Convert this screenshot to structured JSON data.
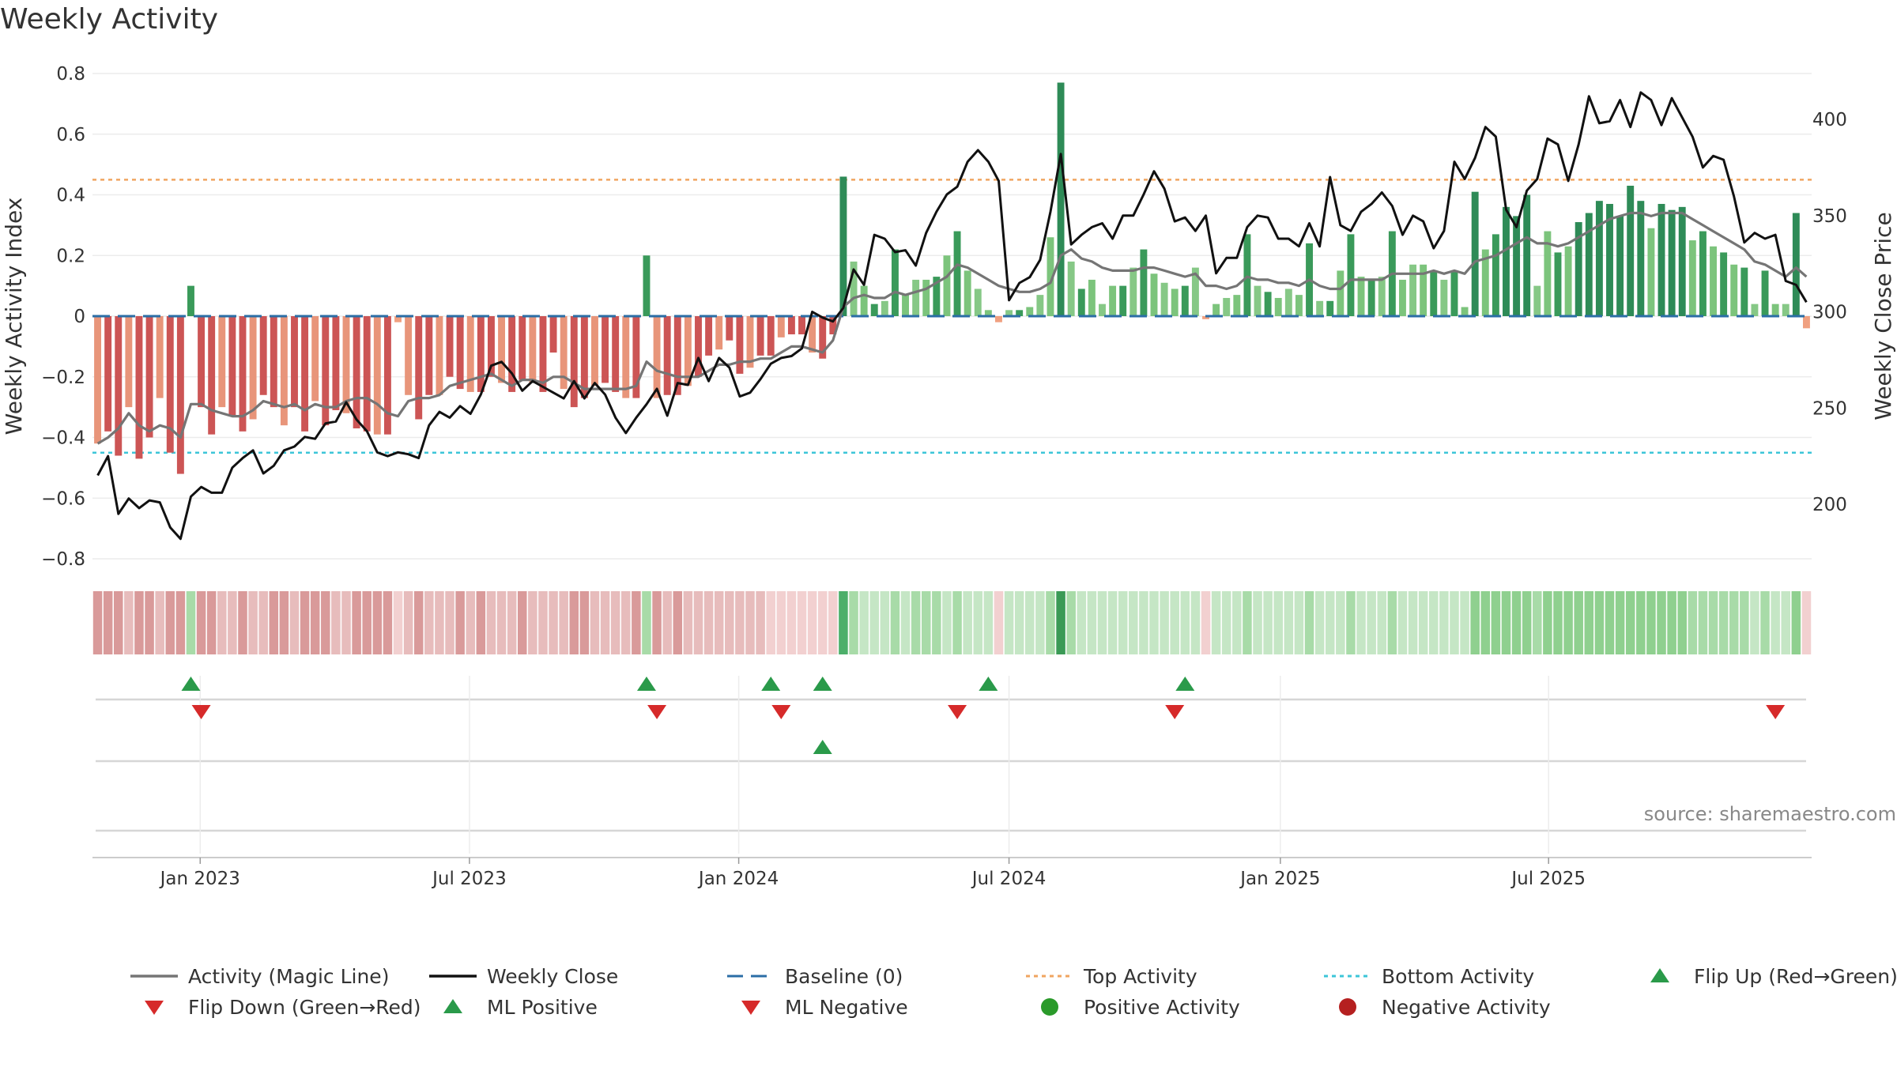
{
  "chart_data": {
    "type": "bar",
    "title": "Weekly Activity",
    "source": "source: sharemaestro.com",
    "left_axis": {
      "label": "Weekly Activity Index",
      "ylim": [
        -0.8,
        0.8
      ],
      "ticks": [
        "−0.8",
        "−0.6",
        "−0.4",
        "−0.2",
        "0",
        "0.2",
        "0.4",
        "0.6",
        "0.8"
      ]
    },
    "right_axis": {
      "label": "Weekly Close Price",
      "ticks": [
        "200",
        "250",
        "300",
        "350",
        "400"
      ]
    },
    "x_axis": {
      "ticks": [
        "Jan 2023",
        "Jul 2023",
        "Jan 2024",
        "Jul 2024",
        "Jan 2025",
        "Jul 2025"
      ]
    },
    "reference_lines": {
      "baseline": 0,
      "top_activity": 0.45,
      "bottom_activity": -0.45
    },
    "activity_index": [
      -0.42,
      -0.38,
      -0.46,
      -0.3,
      -0.47,
      -0.4,
      -0.27,
      -0.45,
      -0.52,
      0.1,
      -0.3,
      -0.39,
      -0.3,
      -0.33,
      -0.38,
      -0.34,
      -0.26,
      -0.3,
      -0.36,
      -0.3,
      -0.38,
      -0.28,
      -0.36,
      -0.31,
      -0.32,
      -0.37,
      -0.38,
      -0.39,
      -0.39,
      -0.02,
      -0.26,
      -0.34,
      -0.26,
      -0.26,
      -0.2,
      -0.24,
      -0.25,
      -0.25,
      -0.2,
      -0.22,
      -0.25,
      -0.21,
      -0.22,
      -0.25,
      -0.12,
      -0.24,
      -0.3,
      -0.27,
      -0.23,
      -0.22,
      -0.25,
      -0.27,
      -0.27,
      0.2,
      -0.27,
      -0.26,
      -0.26,
      -0.23,
      -0.2,
      -0.13,
      -0.11,
      -0.08,
      -0.19,
      -0.17,
      -0.13,
      -0.13,
      -0.07,
      -0.06,
      -0.06,
      -0.12,
      -0.14,
      -0.06,
      0.46,
      0.18,
      0.1,
      0.04,
      0.05,
      0.22,
      0.07,
      0.12,
      0.12,
      0.13,
      0.2,
      0.28,
      0.15,
      0.09,
      0.02,
      -0.02,
      0.02,
      0.02,
      0.03,
      0.07,
      0.26,
      0.77,
      0.18,
      0.09,
      0.12,
      0.04,
      0.1,
      0.1,
      0.16,
      0.22,
      0.14,
      0.11,
      0.09,
      0.1,
      0.16,
      -0.01,
      0.04,
      0.06,
      0.07,
      0.27,
      0.1,
      0.08,
      0.06,
      0.09,
      0.07,
      0.24,
      0.05,
      0.05,
      0.15,
      0.27,
      0.13,
      0.12,
      0.13,
      0.28,
      0.12,
      0.17,
      0.17,
      0.15,
      0.12,
      0.15,
      0.03,
      0.41,
      0.22,
      0.27,
      0.36,
      0.33,
      0.4,
      0.1,
      0.28,
      0.21,
      0.23,
      0.31,
      0.34,
      0.38,
      0.37,
      0.33,
      0.43,
      0.38,
      0.29,
      0.37,
      0.35,
      0.36,
      0.25,
      0.28,
      0.23,
      0.21,
      0.17,
      0.16,
      0.04,
      0.15,
      0.04,
      0.04,
      0.34,
      -0.04
    ],
    "magic_line": [
      -0.42,
      -0.4,
      -0.37,
      -0.32,
      -0.36,
      -0.38,
      -0.36,
      -0.37,
      -0.4,
      -0.29,
      -0.29,
      -0.31,
      -0.32,
      -0.33,
      -0.33,
      -0.31,
      -0.28,
      -0.29,
      -0.3,
      -0.29,
      -0.31,
      -0.29,
      -0.3,
      -0.3,
      -0.28,
      -0.27,
      -0.27,
      -0.29,
      -0.32,
      -0.33,
      -0.28,
      -0.27,
      -0.27,
      -0.26,
      -0.23,
      -0.22,
      -0.21,
      -0.2,
      -0.19,
      -0.21,
      -0.23,
      -0.21,
      -0.21,
      -0.22,
      -0.2,
      -0.2,
      -0.22,
      -0.24,
      -0.24,
      -0.24,
      -0.24,
      -0.24,
      -0.23,
      -0.15,
      -0.18,
      -0.19,
      -0.2,
      -0.2,
      -0.2,
      -0.18,
      -0.16,
      -0.16,
      -0.15,
      -0.15,
      -0.14,
      -0.14,
      -0.12,
      -0.1,
      -0.1,
      -0.11,
      -0.12,
      -0.08,
      0.03,
      0.06,
      0.07,
      0.06,
      0.06,
      0.08,
      0.07,
      0.08,
      0.09,
      0.11,
      0.13,
      0.17,
      0.16,
      0.14,
      0.12,
      0.1,
      0.09,
      0.08,
      0.08,
      0.09,
      0.11,
      0.2,
      0.22,
      0.19,
      0.18,
      0.16,
      0.15,
      0.15,
      0.15,
      0.16,
      0.16,
      0.15,
      0.14,
      0.13,
      0.14,
      0.1,
      0.1,
      0.09,
      0.1,
      0.13,
      0.12,
      0.12,
      0.11,
      0.11,
      0.1,
      0.12,
      0.1,
      0.09,
      0.09,
      0.12,
      0.12,
      0.12,
      0.12,
      0.14,
      0.14,
      0.14,
      0.14,
      0.15,
      0.14,
      0.15,
      0.14,
      0.18,
      0.19,
      0.2,
      0.22,
      0.24,
      0.26,
      0.24,
      0.24,
      0.23,
      0.24,
      0.26,
      0.28,
      0.3,
      0.32,
      0.33,
      0.34,
      0.34,
      0.33,
      0.34,
      0.34,
      0.34,
      0.32,
      0.3,
      0.28,
      0.26,
      0.24,
      0.22,
      0.18,
      0.17,
      0.15,
      0.13,
      0.16,
      0.13
    ],
    "weekly_close": [
      215,
      225,
      195,
      203,
      198,
      202,
      201,
      188,
      182,
      204,
      209,
      206,
      206,
      219,
      224,
      228,
      216,
      220,
      228,
      230,
      235,
      234,
      242,
      243,
      253,
      244,
      238,
      227,
      225,
      227,
      226,
      224,
      241,
      248,
      245,
      251,
      247,
      257,
      272,
      274,
      268,
      259,
      264,
      261,
      258,
      255,
      264,
      255,
      263,
      257,
      245,
      237,
      245,
      252,
      260,
      246,
      263,
      262,
      276,
      264,
      276,
      271,
      256,
      258,
      265,
      273,
      276,
      277,
      281,
      300,
      297,
      295,
      302,
      322,
      314,
      340,
      338,
      331,
      332,
      324,
      341,
      352,
      361,
      365,
      378,
      384,
      378,
      368,
      306,
      315,
      318,
      327,
      352,
      382,
      335,
      340,
      344,
      346,
      338,
      350,
      350,
      361,
      373,
      364,
      347,
      349,
      342,
      350,
      320,
      328,
      328,
      344,
      350,
      349,
      338,
      338,
      334,
      346,
      334,
      370,
      345,
      342,
      352,
      356,
      362,
      355,
      340,
      350,
      347,
      333,
      342,
      378,
      369,
      380,
      396,
      391,
      353,
      344,
      363,
      369,
      390,
      387,
      368,
      387,
      412,
      398,
      399,
      410,
      396,
      414,
      410,
      397,
      411,
      401,
      391,
      375,
      381,
      379,
      360,
      336,
      341,
      338,
      340,
      316,
      314,
      305
    ],
    "strip_colors": [
      "#d99a9a",
      "#d99a9a",
      "#d99a9a",
      "#e7bcbc",
      "#d99a9a",
      "#d99a9a",
      "#e7bcbc",
      "#d99a9a",
      "#d99a9a",
      "#a8dba8",
      "#d99a9a",
      "#d99a9a",
      "#e7bcbc",
      "#e7bcbc",
      "#d99a9a",
      "#e7bcbc",
      "#e7bcbc",
      "#d99a9a",
      "#d99a9a",
      "#e7bcbc",
      "#d99a9a",
      "#d99a9a",
      "#d99a9a",
      "#e7bcbc",
      "#e7bcbc",
      "#d99a9a",
      "#d99a9a",
      "#d99a9a",
      "#d99a9a",
      "#f2d0d0",
      "#e7bcbc",
      "#d99a9a",
      "#e7bcbc",
      "#e7bcbc",
      "#e7bcbc",
      "#d99a9a",
      "#e7bcbc",
      "#d99a9a",
      "#e7bcbc",
      "#e7bcbc",
      "#e7bcbc",
      "#d99a9a",
      "#e7bcbc",
      "#e7bcbc",
      "#e7bcbc",
      "#e7bcbc",
      "#d99a9a",
      "#d99a9a",
      "#e7bcbc",
      "#e7bcbc",
      "#e7bcbc",
      "#e7bcbc",
      "#d99a9a",
      "#a8dba8",
      "#d99a9a",
      "#e7bcbc",
      "#d99a9a",
      "#e7bcbc",
      "#e7bcbc",
      "#e7bcbc",
      "#e7bcbc",
      "#e7bcbc",
      "#e7bcbc",
      "#e7bcbc",
      "#e7bcbc",
      "#f2d0d0",
      "#f2d0d0",
      "#f2d0d0",
      "#f2d0d0",
      "#f2d0d0",
      "#f2d0d0",
      "#f2d0d0",
      "#4caf6a",
      "#a8dba8",
      "#c5e6c5",
      "#c5e6c5",
      "#c5e6c5",
      "#a8dba8",
      "#c5e6c5",
      "#a8dba8",
      "#a8dba8",
      "#a8dba8",
      "#c5e6c5",
      "#a8dba8",
      "#c5e6c5",
      "#c5e6c5",
      "#c5e6c5",
      "#f2d0d0",
      "#c5e6c5",
      "#c5e6c5",
      "#c5e6c5",
      "#c5e6c5",
      "#a8dba8",
      "#3a9a55",
      "#a8dba8",
      "#c5e6c5",
      "#c5e6c5",
      "#c5e6c5",
      "#c5e6c5",
      "#c5e6c5",
      "#c5e6c5",
      "#c5e6c5",
      "#c5e6c5",
      "#c5e6c5",
      "#c5e6c5",
      "#c5e6c5",
      "#c5e6c5",
      "#f2d0d0",
      "#c5e6c5",
      "#c5e6c5",
      "#c5e6c5",
      "#a8dba8",
      "#c5e6c5",
      "#c5e6c5",
      "#c5e6c5",
      "#c5e6c5",
      "#c5e6c5",
      "#a8dba8",
      "#c5e6c5",
      "#c5e6c5",
      "#c5e6c5",
      "#a8dba8",
      "#c5e6c5",
      "#c5e6c5",
      "#c5e6c5",
      "#a8dba8",
      "#c5e6c5",
      "#c5e6c5",
      "#c5e6c5",
      "#c5e6c5",
      "#c5e6c5",
      "#c5e6c5",
      "#c5e6c5",
      "#8fd08f",
      "#8fd08f",
      "#8fd08f",
      "#8fd08f",
      "#8fd08f",
      "#8fd08f",
      "#a8dba8",
      "#8fd08f",
      "#8fd08f",
      "#8fd08f",
      "#8fd08f",
      "#8fd08f",
      "#8fd08f",
      "#8fd08f",
      "#8fd08f",
      "#8fd08f",
      "#8fd08f",
      "#8fd08f",
      "#8fd08f",
      "#8fd08f",
      "#8fd08f",
      "#a8dba8",
      "#a8dba8",
      "#a8dba8",
      "#a8dba8",
      "#a8dba8",
      "#a8dba8",
      "#c5e6c5",
      "#a8dba8",
      "#c5e6c5",
      "#c5e6c5",
      "#8fd08f",
      "#f2d0d0"
    ],
    "flip_up_weeks": [
      9,
      53,
      65,
      70,
      86,
      105
    ],
    "flip_down_weeks": [
      10,
      54,
      66,
      83,
      104,
      162
    ],
    "ml_positive_weeks": [
      70
    ],
    "ml_negative_weeks": [],
    "legend": [
      {
        "label": "Activity (Magic Line)",
        "kind": "line",
        "color": "#757575"
      },
      {
        "label": "Weekly Close",
        "kind": "line",
        "color": "#111111"
      },
      {
        "label": "Baseline (0)",
        "kind": "dash",
        "color": "#2b6ea6"
      },
      {
        "label": "Top Activity",
        "kind": "dot",
        "color": "#f0a560"
      },
      {
        "label": "Bottom Activity",
        "kind": "dot",
        "color": "#3cc5d8"
      },
      {
        "label": "Flip Up (Red→Green)",
        "kind": "tri-up",
        "color": "#2a9a4a"
      },
      {
        "label": "Flip Down (Green→Red)",
        "kind": "tri-down",
        "color": "#d62a2a"
      },
      {
        "label": "ML Positive",
        "kind": "tri-up",
        "color": "#2a9a4a"
      },
      {
        "label": "ML Negative",
        "kind": "tri-down",
        "color": "#d62a2a"
      },
      {
        "label": "Positive Activity",
        "kind": "circle",
        "color": "#2a9a2a"
      },
      {
        "label": "Negative Activity",
        "kind": "circle",
        "color": "#b52020"
      }
    ]
  }
}
